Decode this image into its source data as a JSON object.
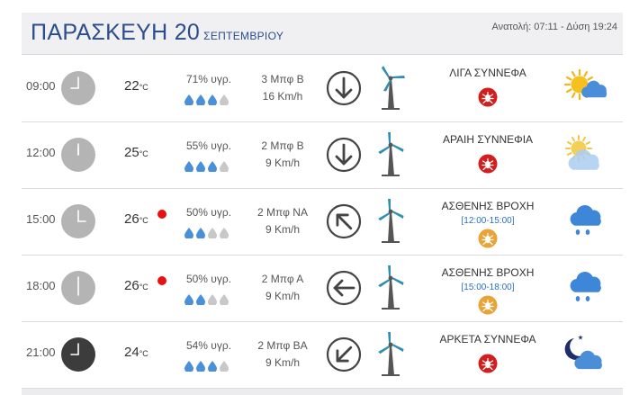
{
  "header": {
    "day": "ΠΑΡΑΣΚΕΥΗ 20",
    "month": "ΣΕΠΤΕΜΒΡΙΟΥ",
    "sun": "Ανατολή: 07:11 - Δύση 19:24"
  },
  "unit": "°C",
  "rows": [
    {
      "time": "09:00",
      "temp": "22",
      "hot": false,
      "humidity": "71% υγρ.",
      "drops": 3,
      "wind_force": "3 Μπφ Β",
      "wind_speed": "16 Km/h",
      "direction": "down",
      "condition": "ΛΙΓΑ ΣΥΝΝΕΦΑ",
      "time_range": "",
      "badge_color": "#d21e1e",
      "icon": "sun-cloud-icon",
      "clock_dark": false,
      "turbine_icon": "wind-turbine-icon"
    },
    {
      "time": "12:00",
      "temp": "25",
      "hot": false,
      "humidity": "55% υγρ.",
      "drops": 3,
      "wind_force": "2 Μπφ Β",
      "wind_speed": "9 Km/h",
      "direction": "down",
      "condition": "ΑΡΑΙΗ ΣΥΝΝΕΦΙΑ",
      "time_range": "",
      "badge_color": "#d21e1e",
      "icon": "hazy-sun-cloud-icon",
      "clock_dark": false,
      "turbine_icon": "wind-turbine-icon"
    },
    {
      "time": "15:00",
      "temp": "26",
      "hot": true,
      "humidity": "50% υγρ.",
      "drops": 2,
      "wind_force": "2 Μπφ ΝΑ",
      "wind_speed": "9 Km/h",
      "direction": "up-left",
      "condition": "ΑΣΘΕΝΗΣ ΒΡΟΧΗ",
      "time_range": "[12:00-15:00]",
      "badge_color": "#e8a436",
      "icon": "rain-cloud-icon",
      "clock_dark": false,
      "turbine_icon": "wind-turbine-icon"
    },
    {
      "time": "18:00",
      "temp": "26",
      "hot": true,
      "humidity": "50% υγρ.",
      "drops": 2,
      "wind_force": "2 Μπφ Α",
      "wind_speed": "9 Km/h",
      "direction": "left",
      "condition": "ΑΣΘΕΝΗΣ ΒΡΟΧΗ",
      "time_range": "[15:00-18:00]",
      "badge_color": "#e8a436",
      "icon": "rain-cloud-icon",
      "clock_dark": false,
      "turbine_icon": "wind-turbine-icon"
    },
    {
      "time": "21:00",
      "temp": "24",
      "hot": false,
      "humidity": "54% υγρ.",
      "drops": 3,
      "wind_force": "2 Μπφ ΒΑ",
      "wind_speed": "9 Km/h",
      "direction": "down-left",
      "condition": "ΑΡΚΕΤΑ ΣΥΝΝΕΦΑ",
      "time_range": "",
      "badge_color": "#d21e1e",
      "icon": "moon-cloud-icon",
      "clock_dark": true,
      "turbine_icon": "wind-turbine-icon"
    }
  ],
  "colors": {
    "title": "#2b4d8c",
    "drop_filled": "#4a90d9",
    "drop_empty": "#c8c8c8",
    "hot_dot": "#e81010",
    "rain_cloud": "#3d86d8"
  }
}
